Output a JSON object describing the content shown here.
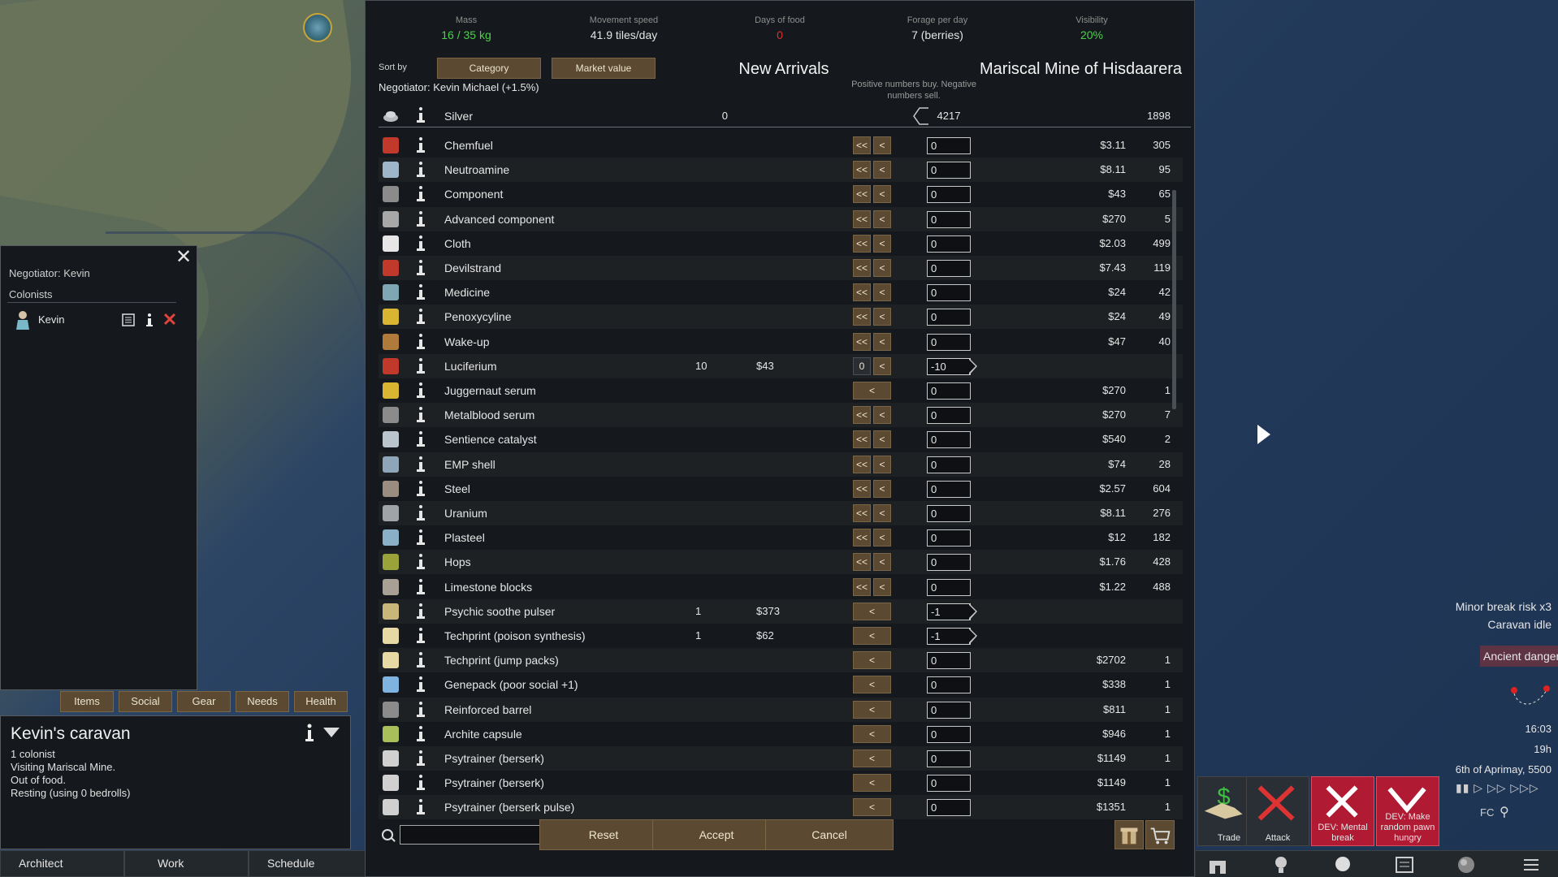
{
  "stats": [
    {
      "label": "Mass",
      "value": "16 / 35 kg",
      "color": "#4cd04c"
    },
    {
      "label": "Movement speed",
      "value": "41.9 tiles/day",
      "color": "#e3e3e3"
    },
    {
      "label": "Days of food",
      "value": "0",
      "color": "#e03030"
    },
    {
      "label": "Forage per day",
      "value": "7 (berries)",
      "color": "#e3e3e3"
    },
    {
      "label": "Visibility",
      "value": "20%",
      "color": "#4cd04c"
    }
  ],
  "sort": {
    "label": "Sort by",
    "primary": "Category",
    "secondary": "Market value"
  },
  "negotiator_line": "Negotiator: Kevin Michael (+1.5%)",
  "left_header": "New Arrivals",
  "right_header": "Mariscal Mine of Hisdaarera",
  "hint": "Positive numbers buy. Negative numbers sell.",
  "silver": {
    "name": "Silver",
    "left_count": "0",
    "value": "4217",
    "right_count": "1898"
  },
  "items": [
    {
      "name": "Chemfuel",
      "lc": "",
      "lp": "",
      "btns": "double",
      "val": "0",
      "rp": "$3.11",
      "rc": "305",
      "icon": "#c0392b"
    },
    {
      "name": "Neutroamine",
      "lc": "",
      "lp": "",
      "btns": "double",
      "val": "0",
      "rp": "$8.11",
      "rc": "95",
      "icon": "#9fb6c9"
    },
    {
      "name": "Component",
      "lc": "",
      "lp": "",
      "btns": "double",
      "val": "0",
      "rp": "$43",
      "rc": "65",
      "icon": "#8b8b8b"
    },
    {
      "name": "Advanced component",
      "lc": "",
      "lp": "",
      "btns": "double",
      "val": "0",
      "rp": "$270",
      "rc": "5",
      "icon": "#a8a8a8"
    },
    {
      "name": "Cloth",
      "lc": "",
      "lp": "",
      "btns": "double",
      "val": "0",
      "rp": "$2.03",
      "rc": "499",
      "icon": "#e6e6e6"
    },
    {
      "name": "Devilstrand",
      "lc": "",
      "lp": "",
      "btns": "double",
      "val": "0",
      "rp": "$7.43",
      "rc": "119",
      "icon": "#c0392b"
    },
    {
      "name": "Medicine",
      "lc": "",
      "lp": "",
      "btns": "double",
      "val": "0",
      "rp": "$24",
      "rc": "42",
      "icon": "#7fa7b3"
    },
    {
      "name": "Penoxycyline",
      "lc": "",
      "lp": "",
      "btns": "double",
      "val": "0",
      "rp": "$24",
      "rc": "49",
      "icon": "#d9b531"
    },
    {
      "name": "Wake-up",
      "lc": "",
      "lp": "",
      "btns": "double",
      "val": "0",
      "rp": "$47",
      "rc": "40",
      "icon": "#b07a3a"
    },
    {
      "name": "Luciferium",
      "lc": "10",
      "lp": "$43",
      "btns": "zero",
      "val": "-10",
      "rp": "",
      "rc": "",
      "icon": "#c0392b"
    },
    {
      "name": "Juggernaut serum",
      "lc": "",
      "lp": "",
      "btns": "single",
      "val": "0",
      "rp": "$270",
      "rc": "1",
      "icon": "#d9b531"
    },
    {
      "name": "Metalblood serum",
      "lc": "",
      "lp": "",
      "btns": "double",
      "val": "0",
      "rp": "$270",
      "rc": "7",
      "icon": "#8b8b8b"
    },
    {
      "name": "Sentience catalyst",
      "lc": "",
      "lp": "",
      "btns": "double",
      "val": "0",
      "rp": "$540",
      "rc": "2",
      "icon": "#b9c4cc"
    },
    {
      "name": "EMP shell",
      "lc": "",
      "lp": "",
      "btns": "double",
      "val": "0",
      "rp": "$74",
      "rc": "28",
      "icon": "#8fa5b8"
    },
    {
      "name": "Steel",
      "lc": "",
      "lp": "",
      "btns": "double",
      "val": "0",
      "rp": "$2.57",
      "rc": "604",
      "icon": "#9a8d80"
    },
    {
      "name": "Uranium",
      "lc": "",
      "lp": "",
      "btns": "double",
      "val": "0",
      "rp": "$8.11",
      "rc": "276",
      "icon": "#9fa4a8"
    },
    {
      "name": "Plasteel",
      "lc": "",
      "lp": "",
      "btns": "double",
      "val": "0",
      "rp": "$12",
      "rc": "182",
      "icon": "#8ab0c8"
    },
    {
      "name": "Hops",
      "lc": "",
      "lp": "",
      "btns": "double",
      "val": "0",
      "rp": "$1.76",
      "rc": "428",
      "icon": "#9aa33a"
    },
    {
      "name": "Limestone blocks",
      "lc": "",
      "lp": "",
      "btns": "double",
      "val": "0",
      "rp": "$1.22",
      "rc": "488",
      "icon": "#a8a095"
    },
    {
      "name": "Psychic soothe pulser",
      "lc": "1",
      "lp": "$373",
      "btns": "single",
      "val": "-1",
      "rp": "",
      "rc": "",
      "icon": "#c9b77a"
    },
    {
      "name": "Techprint (poison synthesis)",
      "lc": "1",
      "lp": "$62",
      "btns": "single",
      "val": "-1",
      "rp": "",
      "rc": "",
      "icon": "#e6d9a3"
    },
    {
      "name": "Techprint (jump packs)",
      "lc": "",
      "lp": "",
      "btns": "single",
      "val": "0",
      "rp": "$2702",
      "rc": "1",
      "icon": "#e6d9a3"
    },
    {
      "name": "Genepack (poor social +1)",
      "lc": "",
      "lp": "",
      "btns": "single",
      "val": "0",
      "rp": "$338",
      "rc": "1",
      "icon": "#7fb3e0"
    },
    {
      "name": "Reinforced barrel",
      "lc": "",
      "lp": "",
      "btns": "single",
      "val": "0",
      "rp": "$811",
      "rc": "1",
      "icon": "#8b8b8b"
    },
    {
      "name": "Archite capsule",
      "lc": "",
      "lp": "",
      "btns": "single",
      "val": "0",
      "rp": "$946",
      "rc": "1",
      "icon": "#a9c05a"
    },
    {
      "name": "Psytrainer (berserk)",
      "lc": "",
      "lp": "",
      "btns": "single",
      "val": "0",
      "rp": "$1149",
      "rc": "1",
      "icon": "#d0d0d0"
    },
    {
      "name": "Psytrainer (berserk)",
      "lc": "",
      "lp": "",
      "btns": "single",
      "val": "0",
      "rp": "$1149",
      "rc": "1",
      "icon": "#d0d0d0"
    },
    {
      "name": "Psytrainer (berserk pulse)",
      "lc": "",
      "lp": "",
      "btns": "single",
      "val": "0",
      "rp": "$1351",
      "rc": "1",
      "icon": "#d0d0d0"
    }
  ],
  "footer": {
    "reset": "Reset",
    "accept": "Accept",
    "cancel": "Cancel",
    "search_value": ""
  },
  "caravan_panel": {
    "negotiator": "Negotiator: Kevin",
    "colonists_label": "Colonists",
    "pawn_name": "Kevin"
  },
  "tabs": [
    "Items",
    "Social",
    "Gear",
    "Needs",
    "Health"
  ],
  "caravan": {
    "title": "Kevin's caravan",
    "lines": [
      "1 colonist",
      "Visiting Mariscal Mine.",
      "Out of food.",
      "Resting (using 0 bedrolls)"
    ]
  },
  "bottom": [
    "Architect",
    "Work",
    "Schedule"
  ],
  "alerts": [
    "Minor break risk x3",
    "Caravan idle"
  ],
  "danger": "Ancient danger",
  "time": [
    "16:03",
    "19h",
    "6th of Aprimay, 5500"
  ],
  "fc": "FC",
  "gizmos": [
    {
      "label": "Trade",
      "red": false,
      "icon": "#4c9a4c"
    },
    {
      "label": "Attack",
      "red": false,
      "icon": "#d33"
    },
    {
      "label": "DEV: Mental break",
      "red": true,
      "icon": "#fff"
    },
    {
      "label": "DEV: Make random pawn hungry",
      "red": true,
      "icon": "#fff"
    }
  ]
}
